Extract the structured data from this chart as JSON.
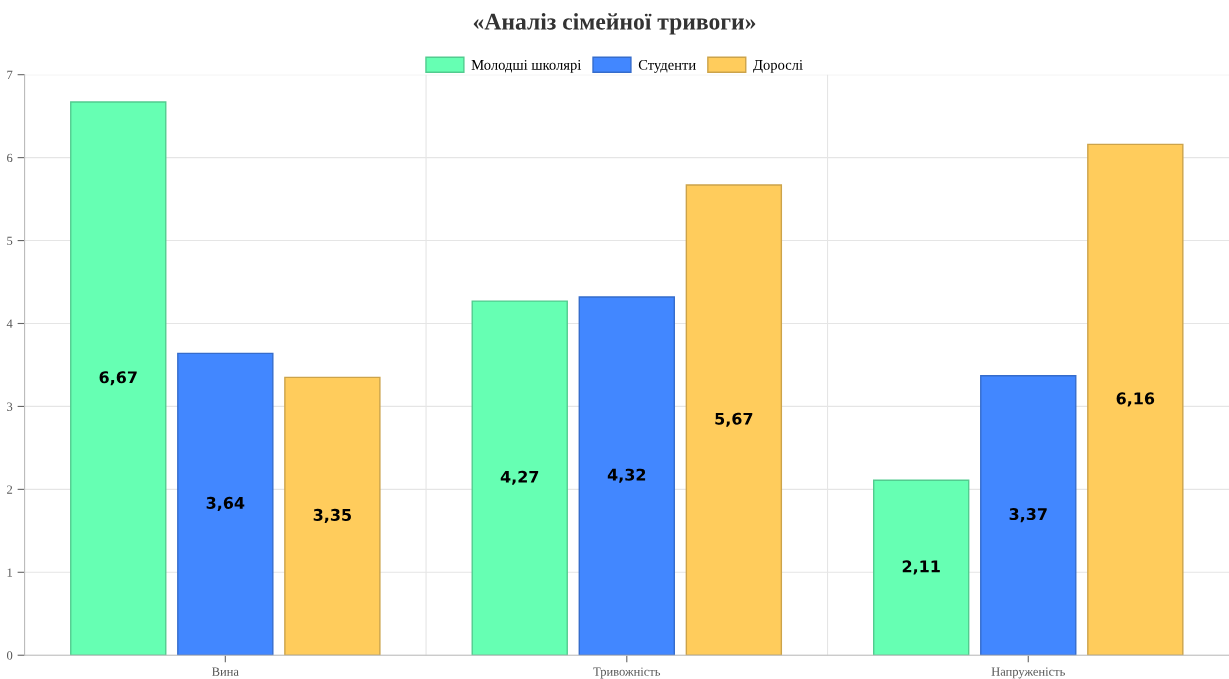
{
  "chart_data": {
    "type": "bar",
    "title": "«Аналіз сімейної тривоги»",
    "categories": [
      "Вина",
      "Тривожність",
      "Напруженість"
    ],
    "series": [
      {
        "name": "Молодші школярі",
        "color": "#66ffb3",
        "values": [
          6.67,
          4.27,
          2.11
        ],
        "value_labels": [
          "6,67",
          "4,27",
          "2,11"
        ]
      },
      {
        "name": "Студенти",
        "color": "#4287ff",
        "values": [
          3.64,
          4.32,
          3.37
        ],
        "value_labels": [
          "3,64",
          "4,32",
          "3,37"
        ]
      },
      {
        "name": "Дорослі",
        "color": "#ffcc5c",
        "values": [
          3.35,
          5.67,
          6.16
        ],
        "value_labels": [
          "3,35",
          "5,67",
          "6,16"
        ]
      }
    ],
    "ylim": [
      0,
      7
    ],
    "yticks": [
      0,
      1,
      2,
      3,
      4,
      5,
      6,
      7
    ],
    "grid": true,
    "legend": "top"
  }
}
